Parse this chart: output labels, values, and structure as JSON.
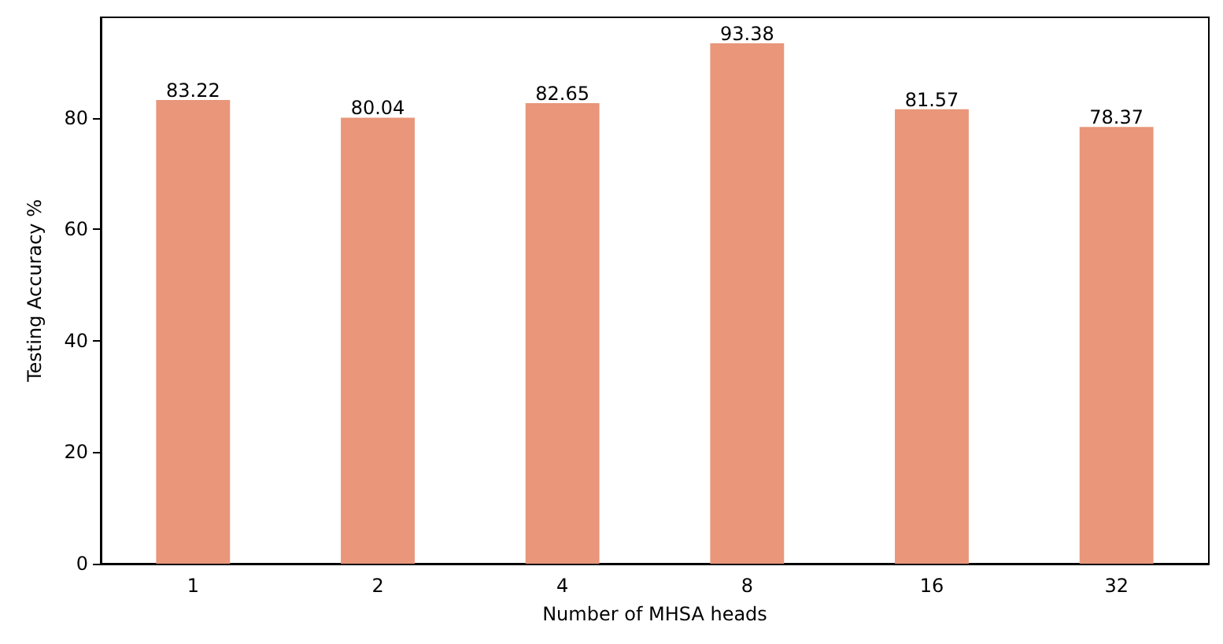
{
  "chart_data": {
    "type": "bar",
    "xlabel": "Number of MHSA heads",
    "ylabel": "Testing Accuracy %",
    "categories": [
      "1",
      "2",
      "4",
      "8",
      "16",
      "32"
    ],
    "values": [
      83.22,
      80.04,
      82.65,
      93.38,
      81.57,
      78.37
    ],
    "color": "#e9967a",
    "ylim": [
      0,
      98.05
    ],
    "yticks": [
      0,
      20,
      40,
      60,
      80
    ],
    "grid": false,
    "data_labels": true
  }
}
